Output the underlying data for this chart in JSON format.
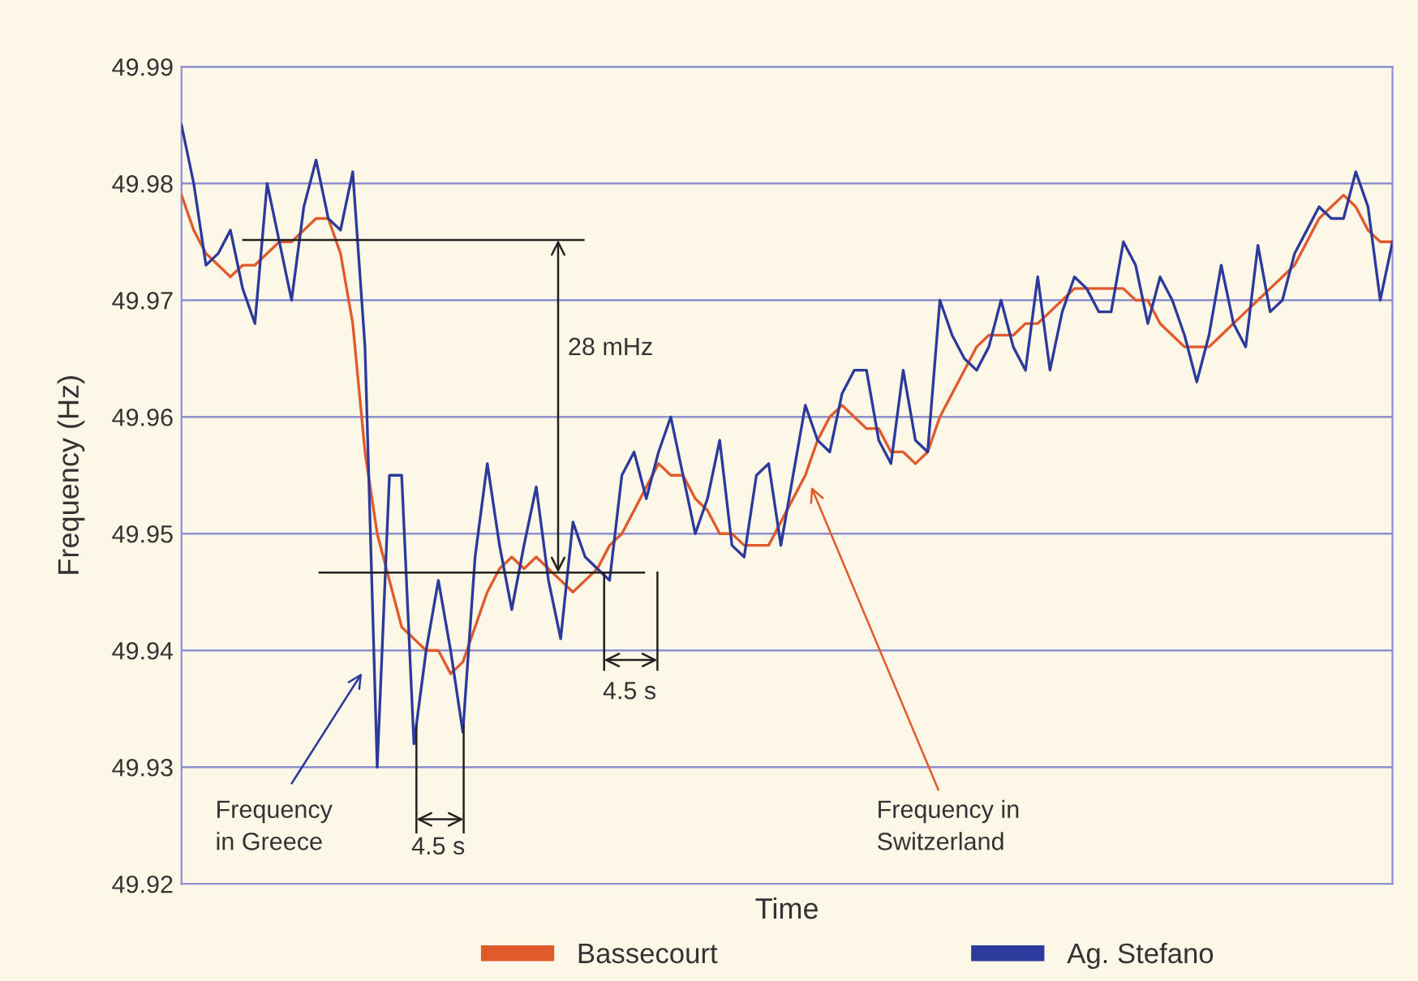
{
  "chart_data": {
    "type": "line",
    "xlabel": "Time",
    "ylabel": "Frequency (Hz)",
    "categories": [
      null,
      null,
      null,
      null,
      null,
      null,
      null,
      null,
      null,
      null,
      null,
      null,
      null,
      null,
      null,
      null,
      null,
      null,
      null,
      null,
      null,
      null,
      null,
      null,
      null,
      null,
      null,
      null,
      null,
      null,
      null,
      null,
      null,
      null,
      null,
      null,
      null,
      null,
      null,
      null,
      null,
      null,
      null,
      null,
      null,
      null,
      null,
      null,
      null,
      null,
      null,
      null,
      null,
      null,
      null,
      null,
      null,
      null,
      null,
      null,
      null,
      null,
      null,
      null,
      null,
      null,
      null,
      null,
      null,
      null,
      null,
      null,
      null,
      null,
      null,
      null,
      null,
      null,
      null,
      null,
      null,
      null,
      null,
      null,
      null,
      null,
      null,
      null,
      null,
      null,
      null,
      null,
      null,
      null,
      null,
      null,
      null,
      null,
      null,
      null
    ],
    "series": [
      {
        "name": "Bassecourt",
        "color": "#e05a2b",
        "values": [
          49.979,
          49.976,
          49.974,
          49.973,
          49.972,
          49.973,
          49.973,
          49.974,
          49.975,
          49.975,
          49.976,
          49.977,
          49.977,
          49.974,
          49.968,
          49.957,
          49.95,
          49.946,
          49.942,
          49.941,
          49.94,
          49.94,
          49.938,
          49.939,
          49.942,
          49.945,
          49.947,
          49.948,
          49.947,
          49.948,
          49.947,
          49.946,
          49.945,
          49.946,
          49.947,
          49.949,
          49.95,
          49.952,
          49.954,
          49.956,
          49.955,
          49.955,
          49.953,
          49.952,
          49.95,
          49.95,
          49.949,
          49.949,
          49.949,
          49.951,
          49.953,
          49.955,
          49.958,
          49.96,
          49.961,
          49.96,
          49.959,
          49.959,
          49.957,
          49.957,
          49.956,
          49.957,
          49.96,
          49.962,
          49.964,
          49.966,
          49.967,
          49.967,
          49.967,
          49.968,
          49.968,
          49.969,
          49.97,
          49.971,
          49.971,
          49.971,
          49.971,
          49.971,
          49.97,
          49.97,
          49.968,
          49.967,
          49.966,
          49.966,
          49.966,
          49.967,
          49.968,
          49.969,
          49.97,
          49.971,
          49.972,
          49.973,
          49.975,
          49.977,
          49.978,
          49.979,
          49.978,
          49.976,
          49.975,
          49.975
        ]
      },
      {
        "name": "Ag. Stefano",
        "color": "#2b3a9b",
        "values": [
          49.985,
          49.98,
          49.973,
          49.974,
          49.976,
          49.971,
          49.968,
          49.98,
          49.975,
          49.97,
          49.978,
          49.982,
          49.977,
          49.976,
          49.981,
          49.966,
          49.93,
          49.955,
          49.955,
          49.932,
          49.94,
          49.946,
          49.94,
          49.933,
          49.948,
          49.956,
          49.949,
          49.9435,
          49.949,
          49.954,
          49.946,
          49.941,
          49.951,
          49.948,
          49.947,
          49.946,
          49.955,
          49.957,
          49.953,
          49.957,
          49.96,
          49.955,
          49.95,
          49.953,
          49.958,
          49.949,
          49.948,
          49.955,
          49.956,
          49.949,
          49.955,
          49.961,
          49.958,
          49.957,
          49.962,
          49.964,
          49.964,
          49.958,
          49.956,
          49.964,
          49.958,
          49.957,
          49.97,
          49.967,
          49.965,
          49.964,
          49.966,
          49.97,
          49.966,
          49.964,
          49.972,
          49.964,
          49.969,
          49.972,
          49.971,
          49.969,
          49.969,
          49.975,
          49.973,
          49.968,
          49.972,
          49.97,
          49.967,
          49.963,
          49.967,
          49.973,
          49.968,
          49.966,
          49.9747,
          49.969,
          49.97,
          49.974,
          49.976,
          49.978,
          49.977,
          49.977,
          49.981,
          49.978,
          49.97,
          49.975
        ]
      }
    ],
    "ylim": [
      49.92,
      49.99
    ],
    "yticks": [
      49.92,
      49.93,
      49.94,
      49.95,
      49.96,
      49.97,
      49.98,
      49.99
    ],
    "grid": "y",
    "legend": "bottom",
    "tick_labels": "y",
    "annotations": [
      "28 mHz",
      "4.5 s",
      "4.5 s",
      "Frequency\nin Greece",
      "Frequency in\nSwitzerland"
    ]
  }
}
